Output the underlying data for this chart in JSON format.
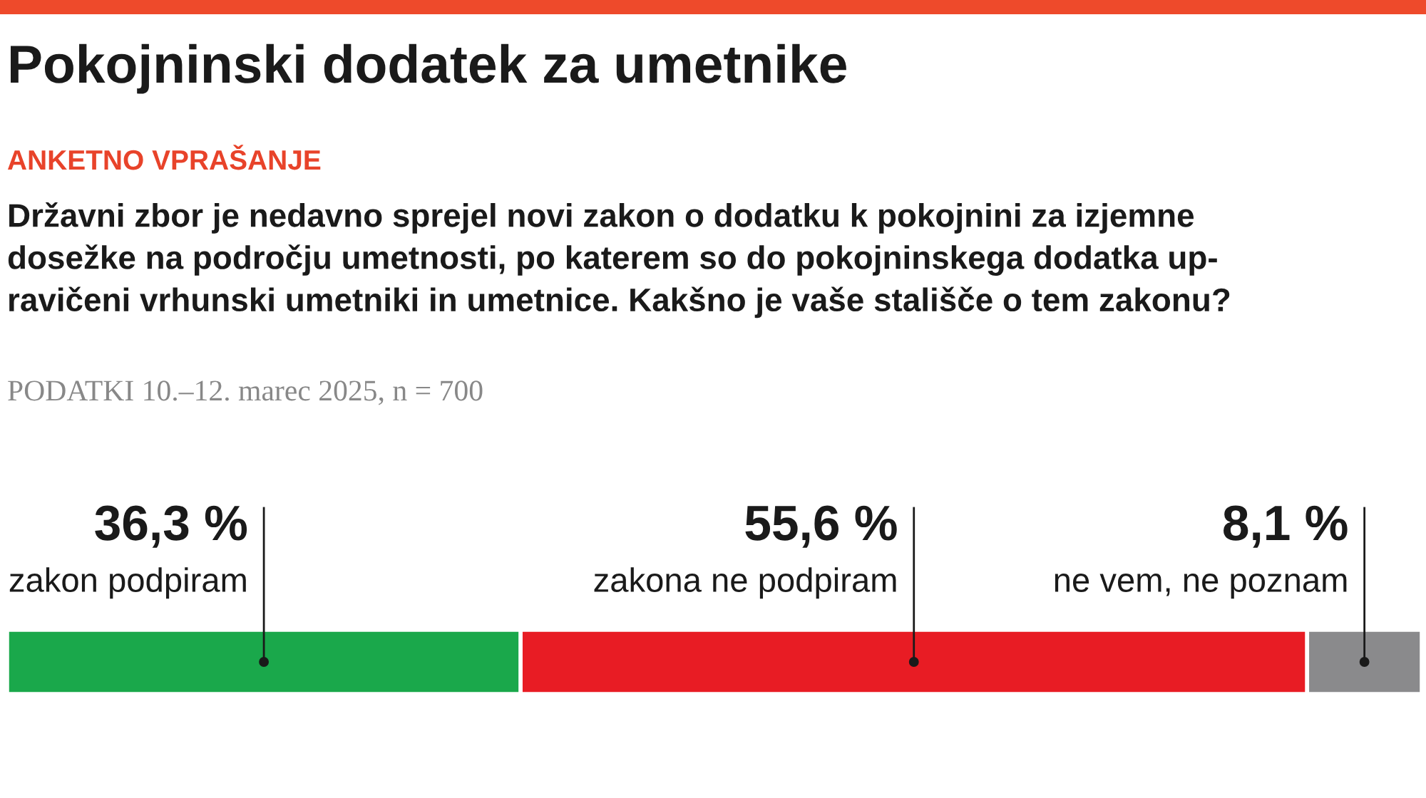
{
  "chart_data": {
    "type": "bar",
    "orientation": "horizontal",
    "stacked": true,
    "title": "Pokojninski dodatek za umetnike",
    "subtitle": "ANKETNO VPRAŠANJE",
    "annotations": [
      "Državni zbor je nedavno sprejel novi zakon o dodatku k pokojnini za izjemne\ndosežke na področju umetnosti, po katerem so do pokojninskega dodatka up-\nravičeni vrhunski umetniki in umetnice. Kakšno je vaše stališče o tem zakonu?",
      "PODATKI 10.–12. marec 2025, n = 700"
    ],
    "categories": [
      null
    ],
    "xlim": [
      0,
      100
    ],
    "legend": false,
    "series": [
      {
        "name": "zakon podpiram",
        "color": "#1aa84b",
        "values": [
          36.3
        ],
        "value_labels": [
          "36,3 %"
        ]
      },
      {
        "name": "zakona ne podpiram",
        "color": "#e81c24",
        "values": [
          55.6
        ],
        "value_labels": [
          "55,6 %"
        ]
      },
      {
        "name": "ne vem, ne poznam",
        "color": "#8a8a8c",
        "values": [
          8.1
        ],
        "value_labels": [
          "8,1 %"
        ]
      }
    ]
  }
}
